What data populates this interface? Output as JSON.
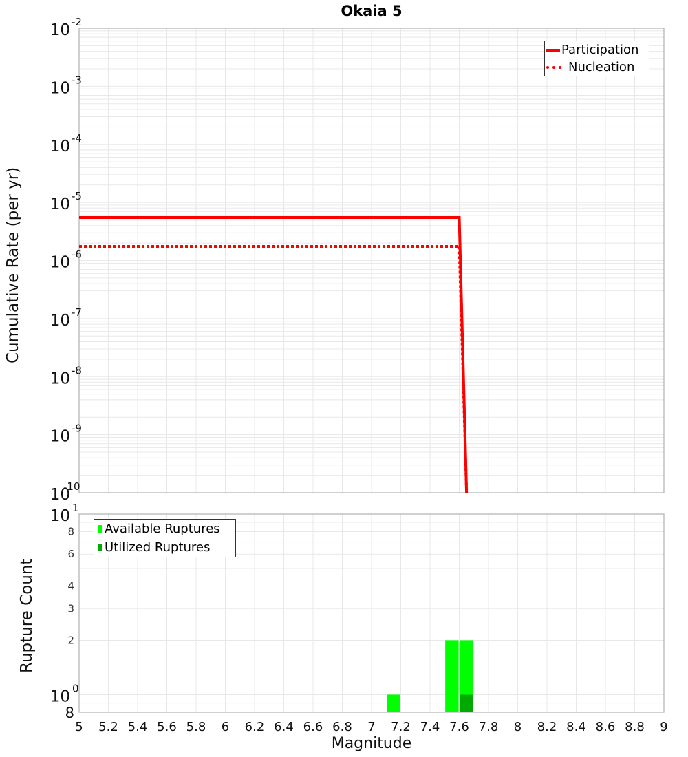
{
  "title": "Okaia 5",
  "top_plot": {
    "ylabel": "Cumulative Rate (per yr)",
    "legend": [
      {
        "label": "Participation",
        "style": "solid",
        "color": "#ff0000"
      },
      {
        "label": "Nucleation",
        "style": "dotted",
        "color": "#ff0000"
      }
    ],
    "yticks": [
      "10^-2",
      "10^-3",
      "10^-4",
      "10^-5",
      "10^-6",
      "10^-7",
      "10^-8",
      "10^-9",
      "10^-10"
    ]
  },
  "bottom_plot": {
    "ylabel": "Rupture Count",
    "legend": [
      {
        "label": "Available Ruptures",
        "color": "#00ff00"
      },
      {
        "label": "Utilized Ruptures",
        "color": "#00aa00"
      }
    ],
    "yticks": [
      "10^1",
      "8",
      "6",
      "4",
      "3",
      "2",
      "10^0",
      "8"
    ]
  },
  "xlabel": "Magnitude",
  "xticks": [
    "5",
    "5.2",
    "5.4",
    "5.6",
    "5.8",
    "6",
    "6.2",
    "6.4",
    "6.6",
    "6.8",
    "7",
    "7.2",
    "7.4",
    "7.6",
    "7.8",
    "8",
    "8.2",
    "8.4",
    "8.6",
    "8.8",
    "9"
  ],
  "chart_data": [
    {
      "type": "line",
      "title": "Okaia 5",
      "xlabel": "Magnitude",
      "ylabel": "Cumulative Rate (per yr)",
      "xlim": [
        5,
        9
      ],
      "ylim": [
        1e-10,
        0.01
      ],
      "yscale": "log",
      "grid": true,
      "legend_position": "upper right",
      "series": [
        {
          "name": "Participation",
          "style": "solid",
          "color": "#ff0000",
          "x": [
            5.0,
            7.6,
            7.65
          ],
          "y": [
            5.5e-06,
            5.5e-06,
            1e-10
          ]
        },
        {
          "name": "Nucleation",
          "style": "dotted",
          "color": "#ff0000",
          "x": [
            5.0,
            7.6,
            7.65
          ],
          "y": [
            1.75e-06,
            1.75e-06,
            1e-10
          ]
        }
      ]
    },
    {
      "type": "bar",
      "xlabel": "Magnitude",
      "ylabel": "Rupture Count",
      "xlim": [
        5,
        9
      ],
      "ylim": [
        0.8,
        10
      ],
      "yscale": "log",
      "grid": true,
      "legend_position": "upper left",
      "categories": [
        7.15,
        7.55,
        7.65
      ],
      "series": [
        {
          "name": "Available Ruptures",
          "color": "#00ff00",
          "values": [
            1,
            2,
            2
          ]
        },
        {
          "name": "Utilized Ruptures",
          "color": "#00aa00",
          "values": [
            0,
            0,
            1
          ]
        }
      ]
    }
  ]
}
